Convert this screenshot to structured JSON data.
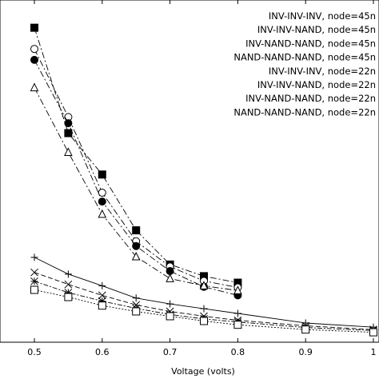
{
  "chart_data": {
    "type": "line",
    "title": "",
    "xlabel": "Voltage (volts)",
    "ylabel": "",
    "xlim": [
      0.39,
      1.0
    ],
    "ylim": [
      0,
      1
    ],
    "xticks": [
      "0.5",
      "0.6",
      "0.7",
      "0.8",
      "0.9",
      "1"
    ],
    "x_tick_values": [
      0.5,
      0.6,
      0.7,
      0.8,
      0.9,
      1.0
    ],
    "legend_position": "top-right",
    "grid": false,
    "series": [
      {
        "name": "INV-INV-INV, node=45n",
        "marker": "filled-square",
        "dash": "8,3,2,3",
        "x": [
          0.5,
          0.55,
          0.6,
          0.65,
          0.7,
          0.75,
          0.8
        ],
        "y": [
          0.919,
          0.611,
          0.49,
          0.327,
          0.227,
          0.193,
          0.174
        ]
      },
      {
        "name": "INV-INV-NAND, node=45n",
        "marker": "open-circle",
        "dash": "8,3,2,3",
        "x": [
          0.5,
          0.55,
          0.6,
          0.65,
          0.7,
          0.75,
          0.8
        ],
        "y": [
          0.857,
          0.658,
          0.437,
          0.295,
          0.221,
          0.179,
          0.16
        ]
      },
      {
        "name": "INV-NAND-NAND, node=45n",
        "marker": "filled-circle",
        "dash": "8,3,2,3",
        "x": [
          0.5,
          0.55,
          0.6,
          0.65,
          0.7,
          0.75,
          0.8
        ],
        "y": [
          0.825,
          0.64,
          0.411,
          0.281,
          0.208,
          0.162,
          0.137
        ]
      },
      {
        "name": "NAND-NAND-NAND, node=45n",
        "marker": "open-triangle",
        "dash": "8,3,2,3",
        "x": [
          0.5,
          0.55,
          0.6,
          0.65,
          0.7,
          0.75,
          0.8
        ],
        "y": [
          0.744,
          0.555,
          0.374,
          0.25,
          0.186,
          0.165,
          0.151
        ]
      },
      {
        "name": "INV-INV-INV, node=22n",
        "marker": "plus",
        "dash": "",
        "x": [
          0.5,
          0.55,
          0.6,
          0.65,
          0.7,
          0.75,
          0.8,
          0.9,
          1.0
        ],
        "y": [
          0.248,
          0.199,
          0.165,
          0.129,
          0.112,
          0.098,
          0.084,
          0.056,
          0.044
        ]
      },
      {
        "name": "INV-INV-NAND, node=22n",
        "marker": "cross",
        "dash": "6,3",
        "x": [
          0.5,
          0.55,
          0.6,
          0.65,
          0.7,
          0.75,
          0.8,
          0.9,
          1.0
        ],
        "y": [
          0.204,
          0.169,
          0.137,
          0.109,
          0.09,
          0.076,
          0.064,
          0.048,
          0.037
        ]
      },
      {
        "name": "INV-NAND-NAND, node=22n",
        "marker": "star",
        "dash": "6,2,2,2",
        "x": [
          0.5,
          0.55,
          0.6,
          0.65,
          0.7,
          0.75,
          0.8,
          0.9,
          1.0
        ],
        "y": [
          0.178,
          0.145,
          0.12,
          0.099,
          0.081,
          0.068,
          0.059,
          0.043,
          0.034
        ]
      },
      {
        "name": "NAND-NAND-NAND, node=22n",
        "marker": "open-square",
        "dash": "2,2",
        "x": [
          0.5,
          0.55,
          0.6,
          0.65,
          0.7,
          0.75,
          0.8,
          0.9,
          1.0
        ],
        "y": [
          0.153,
          0.132,
          0.107,
          0.09,
          0.076,
          0.062,
          0.051,
          0.037,
          0.029
        ]
      }
    ]
  }
}
